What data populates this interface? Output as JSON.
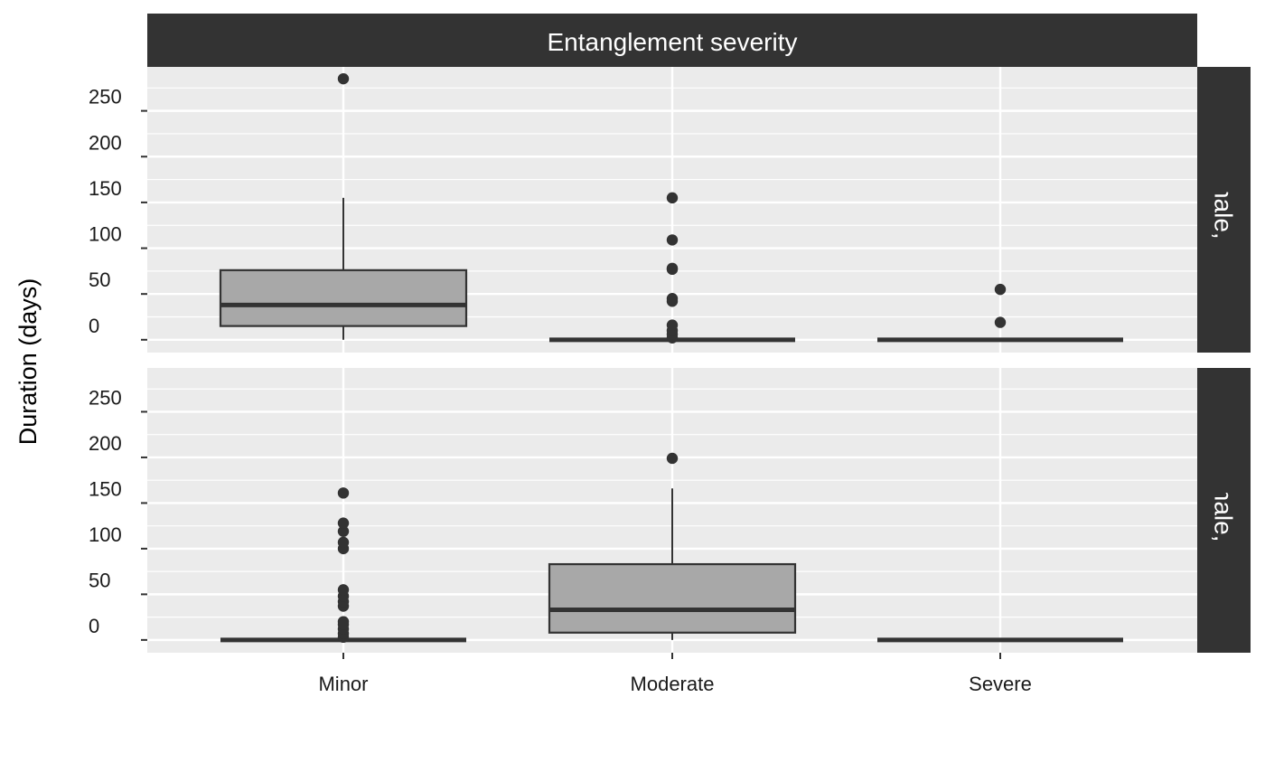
{
  "chart_data": {
    "type": "boxplot",
    "title": "",
    "xlabel": "",
    "ylabel": "Duration (days)",
    "top_strip": "Entanglement severity",
    "categories": [
      "Minor",
      "Moderate",
      "Severe"
    ],
    "yticks": [
      0,
      50,
      100,
      150,
      200,
      250
    ],
    "ylim": [
      -14,
      298
    ],
    "grid": true,
    "colors": {
      "panel_bg": "#ebebeb",
      "grid_major": "#ffffff",
      "strip_bg": "#333333",
      "box_fill": "#a8a8a8",
      "box_line": "#333333",
      "outlier": "#333333"
    },
    "panels": [
      {
        "label": "Adults (female, lactating)",
        "boxes": [
          {
            "category": "Minor",
            "min": 0,
            "q1": 15,
            "median": 38,
            "q3": 76,
            "max": 155,
            "outliers": [
              285
            ]
          },
          {
            "category": "Moderate",
            "min": 0,
            "q1": 0,
            "median": 0,
            "q3": 0,
            "max": 0,
            "outliers": [
              2,
              6,
              10,
              16,
              42,
              45,
              77,
              78,
              109,
              155
            ]
          },
          {
            "category": "Severe",
            "min": 0,
            "q1": 0,
            "median": 0,
            "q3": 0,
            "max": 0,
            "outliers": [
              19,
              55
            ]
          }
        ]
      },
      {
        "label": "Calves (male, female)",
        "boxes": [
          {
            "category": "Minor",
            "min": 0,
            "q1": 0,
            "median": 0,
            "q3": 0,
            "max": 0,
            "outliers": [
              3,
              7,
              12,
              17,
              20,
              37,
              42,
              48,
              55,
              100,
              107,
              119,
              128,
              161
            ]
          },
          {
            "category": "Moderate",
            "min": 0,
            "q1": 8,
            "median": 33,
            "q3": 83,
            "max": 166,
            "outliers": [
              199
            ]
          },
          {
            "category": "Severe",
            "min": 0,
            "q1": 0,
            "median": 0,
            "q3": 0,
            "max": 0,
            "outliers": []
          }
        ]
      }
    ]
  }
}
